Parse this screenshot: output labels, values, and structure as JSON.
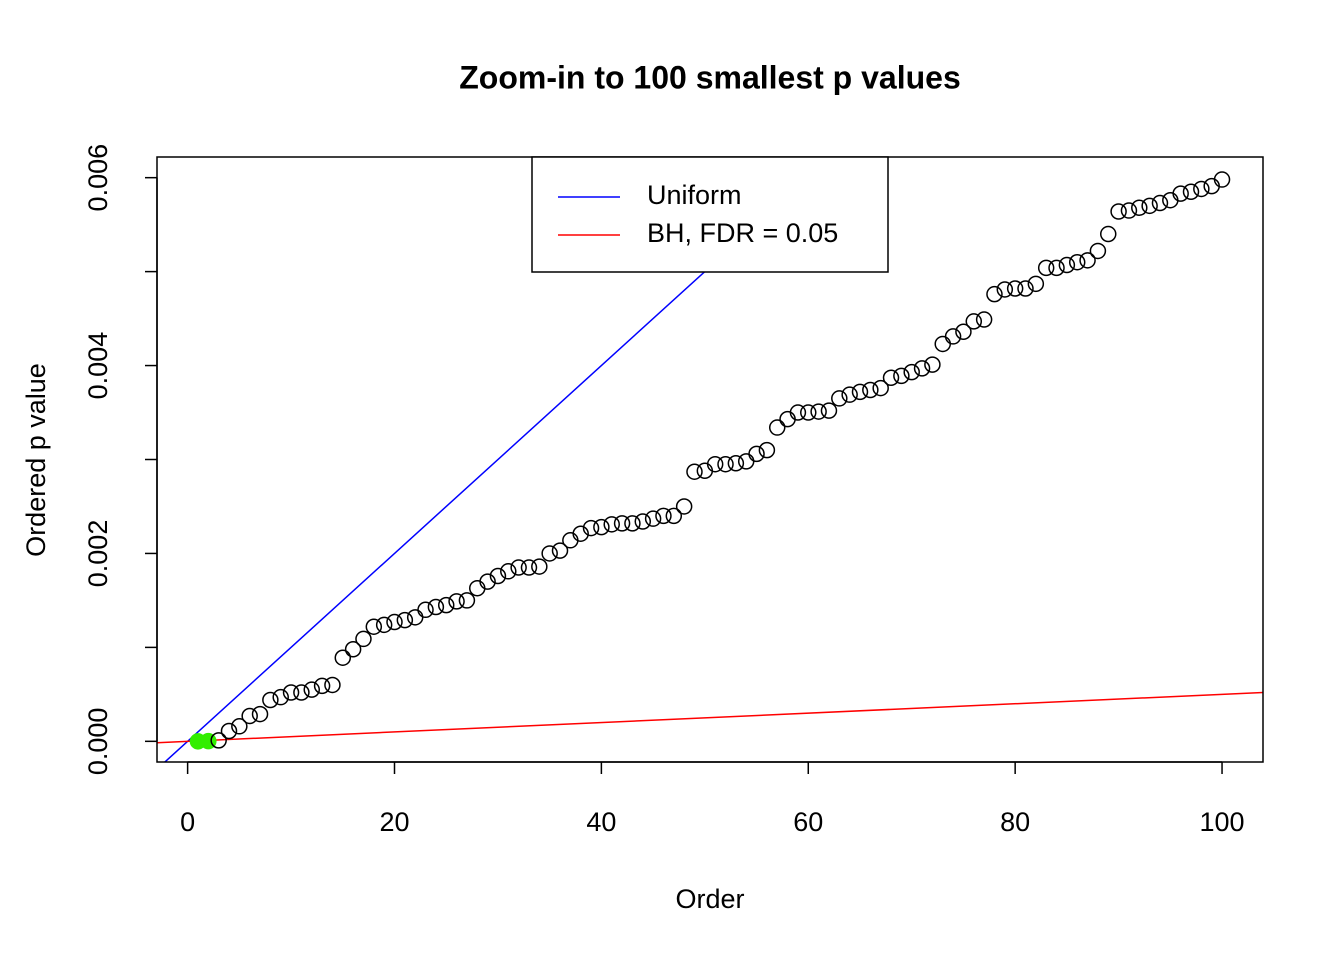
{
  "chart_data": {
    "type": "scatter",
    "title": "Zoom-in to 100 smallest p values",
    "xlabel": "Order",
    "ylabel": "Ordered p value",
    "x": [
      1,
      2,
      3,
      4,
      5,
      6,
      7,
      8,
      9,
      10,
      11,
      12,
      13,
      14,
      15,
      16,
      17,
      18,
      19,
      20,
      21,
      22,
      23,
      24,
      25,
      26,
      27,
      28,
      29,
      30,
      31,
      32,
      33,
      34,
      35,
      36,
      37,
      38,
      39,
      40,
      41,
      42,
      43,
      44,
      45,
      46,
      47,
      48,
      49,
      50,
      51,
      52,
      53,
      54,
      55,
      56,
      57,
      58,
      59,
      60,
      61,
      62,
      63,
      64,
      65,
      66,
      67,
      68,
      69,
      70,
      71,
      72,
      73,
      74,
      75,
      76,
      77,
      78,
      79,
      80,
      81,
      82,
      83,
      84,
      85,
      86,
      87,
      88,
      89,
      90,
      91,
      92,
      93,
      94,
      95,
      96,
      97,
      98,
      99,
      100
    ],
    "values": [
      0.0,
      2e-06,
      1e-05,
      0.00011,
      0.00016,
      0.00027,
      0.00029,
      0.00044,
      0.00047,
      0.00052,
      0.00052,
      0.00055,
      0.00059,
      0.0006,
      0.00089,
      0.00098,
      0.00109,
      0.00122,
      0.00124,
      0.00127,
      0.00129,
      0.00132,
      0.0014,
      0.00143,
      0.00145,
      0.00149,
      0.0015,
      0.00163,
      0.0017,
      0.00176,
      0.00181,
      0.00185,
      0.00185,
      0.00186,
      0.002,
      0.00203,
      0.00214,
      0.00221,
      0.00227,
      0.00228,
      0.00231,
      0.00232,
      0.00232,
      0.00234,
      0.00237,
      0.0024,
      0.0024,
      0.0025,
      0.00287,
      0.00288,
      0.00295,
      0.00295,
      0.00296,
      0.00298,
      0.00306,
      0.0031,
      0.00334,
      0.00343,
      0.0035,
      0.0035,
      0.00351,
      0.00352,
      0.00365,
      0.00369,
      0.00372,
      0.00374,
      0.00376,
      0.00387,
      0.00389,
      0.00393,
      0.00397,
      0.00401,
      0.00423,
      0.00431,
      0.00436,
      0.00447,
      0.00449,
      0.00476,
      0.00481,
      0.00482,
      0.00482,
      0.00487,
      0.00504,
      0.00504,
      0.00507,
      0.0051,
      0.00512,
      0.00522,
      0.0054,
      0.00564,
      0.00565,
      0.00568,
      0.0057,
      0.00573,
      0.00576,
      0.00583,
      0.00585,
      0.00588,
      0.00591,
      0.00598
    ],
    "point_color": "#000000",
    "highlight_color": "#33ee00",
    "highlighted": [
      0,
      1
    ],
    "lines": [
      {
        "name": "Uniform",
        "color": "#0000ff",
        "slope": 0.0001,
        "intercept": 0
      },
      {
        "name": "BH, FDR = 0.05",
        "color": "#ff0000",
        "slope": 5e-06,
        "intercept": 0
      }
    ],
    "legend": "top",
    "xlim": [
      -2.96,
      103.96
    ],
    "ylim": [
      -0.00022,
      0.00622
    ],
    "xticks": [
      0,
      20,
      40,
      60,
      80,
      100
    ],
    "yticks": [
      {
        "value": 0,
        "label": "0.000"
      },
      {
        "value": 0.002,
        "label": "0.002"
      },
      {
        "value": 0.004,
        "label": "0.004"
      },
      {
        "value": 0.006,
        "label": "0.006"
      }
    ],
    "minor_yticks": [
      0.001,
      0.003,
      0.005
    ]
  }
}
